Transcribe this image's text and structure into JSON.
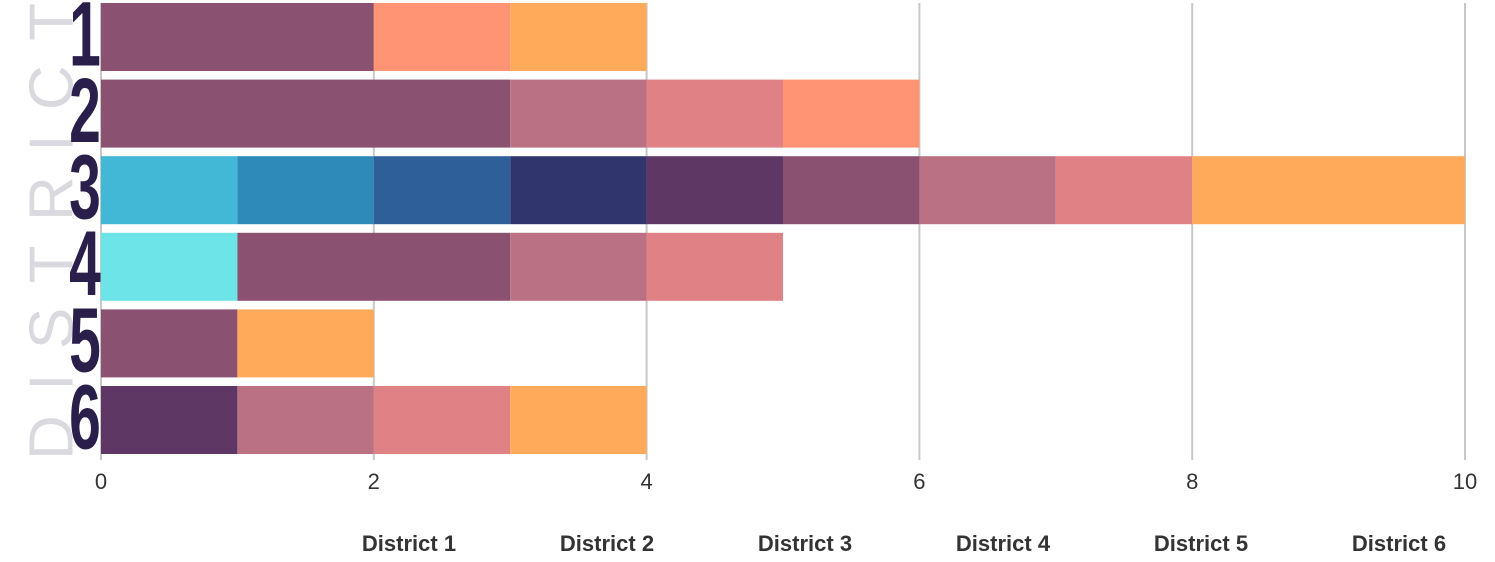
{
  "chart_data": {
    "type": "stacked_barh",
    "axis_title": "DISTRICT",
    "categories": [
      "1",
      "2",
      "3",
      "4",
      "5",
      "6"
    ],
    "series": [
      {
        "color": "#6de4e8",
        "values": [
          0,
          0,
          0,
          1,
          0,
          0
        ]
      },
      {
        "color": "#43b7d6",
        "values": [
          0,
          0,
          1,
          0,
          0,
          0
        ]
      },
      {
        "color": "#2e8bb9",
        "values": [
          0,
          0,
          1,
          0,
          0,
          0
        ]
      },
      {
        "color": "#2e5f99",
        "values": [
          0,
          0,
          1,
          0,
          0,
          0
        ]
      },
      {
        "color": "#31356e",
        "values": [
          0,
          0,
          1,
          0,
          0,
          0
        ]
      },
      {
        "color": "#5e3765",
        "values": [
          0,
          0,
          1,
          0,
          0,
          1
        ]
      },
      {
        "color": "#8a5270",
        "values": [
          2,
          3,
          1,
          2,
          1,
          0
        ]
      },
      {
        "color": "#ba7184",
        "values": [
          0,
          1,
          1,
          1,
          0,
          1
        ]
      },
      {
        "color": "#e08285",
        "values": [
          0,
          1,
          1,
          1,
          0,
          1
        ]
      },
      {
        "color": "#ff9474",
        "values": [
          1,
          1,
          0,
          0,
          0,
          0
        ]
      },
      {
        "color": "#ffa95a",
        "values": [
          1,
          0,
          2,
          0,
          1,
          1
        ]
      }
    ],
    "xlim": [
      0,
      10
    ],
    "xticks": [
      0,
      2,
      4,
      6,
      8,
      10
    ],
    "grid": true,
    "legend_labels": [
      "District 1",
      "District 2",
      "District 3",
      "District 4",
      "District 5",
      "District 6"
    ]
  }
}
